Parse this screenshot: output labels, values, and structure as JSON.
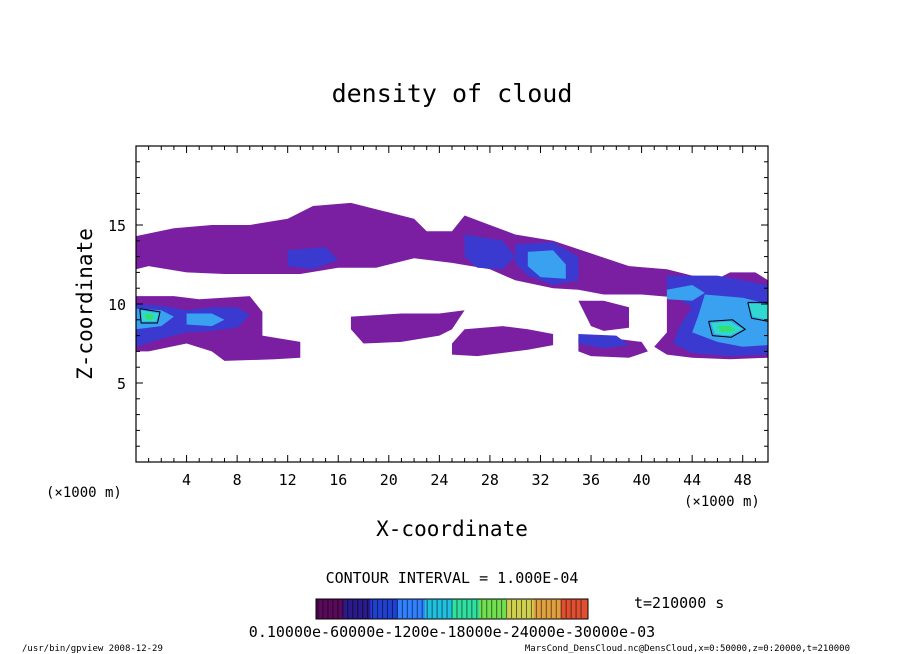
{
  "chart_data": {
    "type": "heatmap",
    "title": "density of cloud",
    "xlabel": "X-coordinate",
    "ylabel": "Z-coordinate",
    "x_unit": "(×1000 m)",
    "xlim": [
      0,
      50
    ],
    "ylim": [
      0,
      20
    ],
    "x_ticks": [
      "4",
      "8",
      "12",
      "16",
      "20",
      "24",
      "28",
      "32",
      "36",
      "40",
      "44",
      "48"
    ],
    "y_ticks": [
      "5",
      "10",
      "15"
    ],
    "contour_interval_label": "CONTOUR INTERVAL = 1.000E-04",
    "time_label": "t=210000 s",
    "colorbar_label": "0.10000e-60000e-1200e-18000e-24000e-30000e-03",
    "colorbar_colors": [
      "#5a0a5a",
      "#2a1a8a",
      "#2040d0",
      "#3080ff",
      "#20c0e0",
      "#30e0a0",
      "#70e050",
      "#d0d050",
      "#e0a040",
      "#e05030"
    ],
    "colors": {
      "outer": "#7a1fa2",
      "blue": "#3a3ad0",
      "light": "#3aa0f0",
      "cyan": "#30d8d0",
      "green": "#30e070"
    },
    "regions": [
      {
        "level": 1,
        "points": [
          [
            0,
            14.3
          ],
          [
            3,
            14.8
          ],
          [
            6,
            15
          ],
          [
            9,
            15
          ],
          [
            12,
            15.4
          ],
          [
            14,
            16.2
          ],
          [
            17,
            16.4
          ],
          [
            20,
            15.8
          ],
          [
            22,
            15.4
          ],
          [
            23,
            14.6
          ],
          [
            25,
            14.6
          ],
          [
            26,
            15.6
          ],
          [
            28,
            15
          ],
          [
            30,
            14.4
          ],
          [
            33,
            14
          ],
          [
            36,
            13.2
          ],
          [
            39,
            12.4
          ],
          [
            42,
            12.2
          ],
          [
            44,
            11.8
          ],
          [
            46,
            11.6
          ],
          [
            47,
            12
          ],
          [
            49,
            12
          ],
          [
            50,
            11.5
          ],
          [
            50,
            9.4
          ],
          [
            48,
            9
          ],
          [
            47,
            9.6
          ],
          [
            45,
            10
          ],
          [
            43,
            10.4
          ],
          [
            40,
            10.6
          ],
          [
            37,
            10.6
          ],
          [
            35,
            10.9
          ],
          [
            33,
            11
          ],
          [
            30,
            11.5
          ],
          [
            28,
            12.2
          ],
          [
            25,
            12.6
          ],
          [
            22,
            12.9
          ],
          [
            19,
            12.3
          ],
          [
            16,
            12.3
          ],
          [
            13,
            11.9
          ],
          [
            10,
            11.9
          ],
          [
            7,
            11.9
          ],
          [
            4,
            12
          ],
          [
            1,
            12.4
          ],
          [
            0,
            12.2
          ]
        ]
      },
      {
        "level": 1,
        "points": [
          [
            0,
            10.5
          ],
          [
            3,
            10.5
          ],
          [
            5,
            10.3
          ],
          [
            9,
            10.5
          ],
          [
            10,
            9.5
          ],
          [
            10,
            8
          ],
          [
            13,
            7.6
          ],
          [
            13,
            6.6
          ],
          [
            11,
            6.5
          ],
          [
            7,
            6.4
          ],
          [
            6,
            7
          ],
          [
            4,
            7.5
          ],
          [
            1,
            7
          ],
          [
            0,
            7
          ]
        ]
      },
      {
        "level": 1,
        "points": [
          [
            17,
            9.2
          ],
          [
            21,
            9.4
          ],
          [
            24,
            9.4
          ],
          [
            26,
            9.6
          ],
          [
            25,
            8.4
          ],
          [
            24,
            8
          ],
          [
            21,
            7.6
          ],
          [
            18,
            7.5
          ],
          [
            17,
            8.4
          ]
        ]
      },
      {
        "level": 1,
        "points": [
          [
            26,
            8.4
          ],
          [
            29,
            8.6
          ],
          [
            31,
            8.4
          ],
          [
            33,
            8.1
          ],
          [
            33,
            7.4
          ],
          [
            31,
            7.1
          ],
          [
            27,
            6.7
          ],
          [
            25,
            6.8
          ],
          [
            25,
            7.5
          ]
        ]
      },
      {
        "level": 1,
        "points": [
          [
            35,
            10.2
          ],
          [
            37,
            10.2
          ],
          [
            39,
            9.8
          ],
          [
            39,
            8.5
          ],
          [
            37,
            8.3
          ],
          [
            36,
            8.6
          ]
        ]
      },
      {
        "level": 1,
        "points": [
          [
            35,
            7.8
          ],
          [
            38,
            7.8
          ],
          [
            40,
            7.6
          ],
          [
            40.5,
            7
          ],
          [
            39,
            6.6
          ],
          [
            36,
            6.7
          ],
          [
            35,
            7
          ]
        ]
      },
      {
        "level": 1,
        "points": [
          [
            42,
            10.4
          ],
          [
            46,
            10.6
          ],
          [
            50,
            10.4
          ],
          [
            50,
            6.6
          ],
          [
            47,
            6.5
          ],
          [
            44,
            6.6
          ],
          [
            42,
            6.8
          ],
          [
            41,
            7.3
          ],
          [
            42,
            8.2
          ]
        ]
      },
      {
        "level": 2,
        "points": [
          [
            0,
            10
          ],
          [
            2,
            9.9
          ],
          [
            4,
            9.6
          ],
          [
            6,
            9.8
          ],
          [
            8,
            9.8
          ],
          [
            9,
            9.3
          ],
          [
            8,
            8.5
          ],
          [
            6,
            8.3
          ],
          [
            4,
            8.2
          ],
          [
            2,
            7.8
          ],
          [
            0,
            7.3
          ]
        ]
      },
      {
        "level": 2,
        "points": [
          [
            26,
            14.4
          ],
          [
            29,
            14
          ],
          [
            30,
            13
          ],
          [
            29,
            12.2
          ],
          [
            27,
            12.3
          ],
          [
            26,
            13
          ]
        ]
      },
      {
        "level": 2,
        "points": [
          [
            30,
            13.8
          ],
          [
            33,
            13.9
          ],
          [
            35,
            13
          ],
          [
            35,
            11.5
          ],
          [
            33,
            11.2
          ],
          [
            31,
            11.8
          ],
          [
            30,
            12.6
          ]
        ]
      },
      {
        "level": 2,
        "points": [
          [
            12,
            13.4
          ],
          [
            15,
            13.6
          ],
          [
            16,
            12.8
          ],
          [
            14,
            12.2
          ],
          [
            12,
            12.4
          ]
        ]
      },
      {
        "level": 2,
        "points": [
          [
            35,
            8.1
          ],
          [
            38,
            8
          ],
          [
            39,
            7.4
          ],
          [
            37,
            7.2
          ],
          [
            35,
            7.5
          ]
        ]
      },
      {
        "level": 2,
        "points": [
          [
            42,
            11.8
          ],
          [
            46,
            11.8
          ],
          [
            50,
            11.2
          ],
          [
            50,
            6.8
          ],
          [
            47,
            6.7
          ],
          [
            44,
            6.9
          ],
          [
            42.5,
            7.5
          ],
          [
            43,
            8.6
          ],
          [
            44,
            9.8
          ],
          [
            42,
            10.8
          ]
        ]
      },
      {
        "level": 3,
        "points": [
          [
            31,
            13.3
          ],
          [
            33,
            13.4
          ],
          [
            34,
            12.5
          ],
          [
            34,
            11.6
          ],
          [
            32,
            11.7
          ],
          [
            31,
            12.4
          ]
        ]
      },
      {
        "level": 3,
        "points": [
          [
            0,
            9.7
          ],
          [
            2,
            9.6
          ],
          [
            3,
            9.2
          ],
          [
            2,
            8.6
          ],
          [
            0,
            8.4
          ]
        ]
      },
      {
        "level": 3,
        "points": [
          [
            4,
            9.4
          ],
          [
            6,
            9.4
          ],
          [
            7,
            9
          ],
          [
            6,
            8.6
          ],
          [
            4,
            8.7
          ]
        ]
      },
      {
        "level": 3,
        "points": [
          [
            42,
            10.9
          ],
          [
            44,
            11.2
          ],
          [
            45,
            10.7
          ],
          [
            44,
            10.2
          ],
          [
            42,
            10.3
          ]
        ]
      },
      {
        "level": 3,
        "points": [
          [
            45,
            10.6
          ],
          [
            48,
            10.4
          ],
          [
            50,
            10
          ],
          [
            50,
            7.4
          ],
          [
            48,
            7.3
          ],
          [
            46,
            7.6
          ],
          [
            44,
            8.2
          ],
          [
            44.5,
            9.3
          ]
        ]
      },
      {
        "level": 4,
        "points": [
          [
            0.4,
            9.6
          ],
          [
            1.8,
            9.4
          ],
          [
            1.6,
            8.9
          ],
          [
            0.5,
            8.9
          ]
        ]
      },
      {
        "level": 4,
        "points": [
          [
            45.5,
            8.8
          ],
          [
            47,
            8.9
          ],
          [
            48,
            8.4
          ],
          [
            47,
            8.0
          ],
          [
            45.8,
            8.1
          ]
        ]
      },
      {
        "level": 4,
        "points": [
          [
            48.5,
            10
          ],
          [
            50,
            10
          ],
          [
            50,
            9
          ],
          [
            48.8,
            9.2
          ]
        ]
      },
      {
        "level": 5,
        "points": [
          [
            0.7,
            9.4
          ],
          [
            1.4,
            9.3
          ],
          [
            1.3,
            9.0
          ],
          [
            0.8,
            9.0
          ]
        ]
      },
      {
        "level": 5,
        "points": [
          [
            46,
            8.6
          ],
          [
            47,
            8.6
          ],
          [
            47.5,
            8.3
          ],
          [
            46.3,
            8.2
          ]
        ]
      }
    ],
    "contours": [
      [
        [
          0.3,
          9.7
        ],
        [
          1.9,
          9.5
        ],
        [
          1.7,
          8.8
        ],
        [
          0.4,
          8.8
        ],
        [
          0.3,
          9.7
        ]
      ],
      [
        [
          45.3,
          8.9
        ],
        [
          47.2,
          9.0
        ],
        [
          48.2,
          8.4
        ],
        [
          47.1,
          7.9
        ],
        [
          45.6,
          8.0
        ],
        [
          45.3,
          8.9
        ]
      ],
      [
        [
          48.4,
          10.1
        ],
        [
          50,
          10.1
        ],
        [
          50,
          8.9
        ],
        [
          48.7,
          9.1
        ],
        [
          48.4,
          10.1
        ]
      ]
    ]
  },
  "footer_left": "/usr/bin/gpview  2008-12-29",
  "footer_right": "MarsCond_DensCloud.nc@DensCloud,x=0:50000,z=0:20000,t=210000"
}
